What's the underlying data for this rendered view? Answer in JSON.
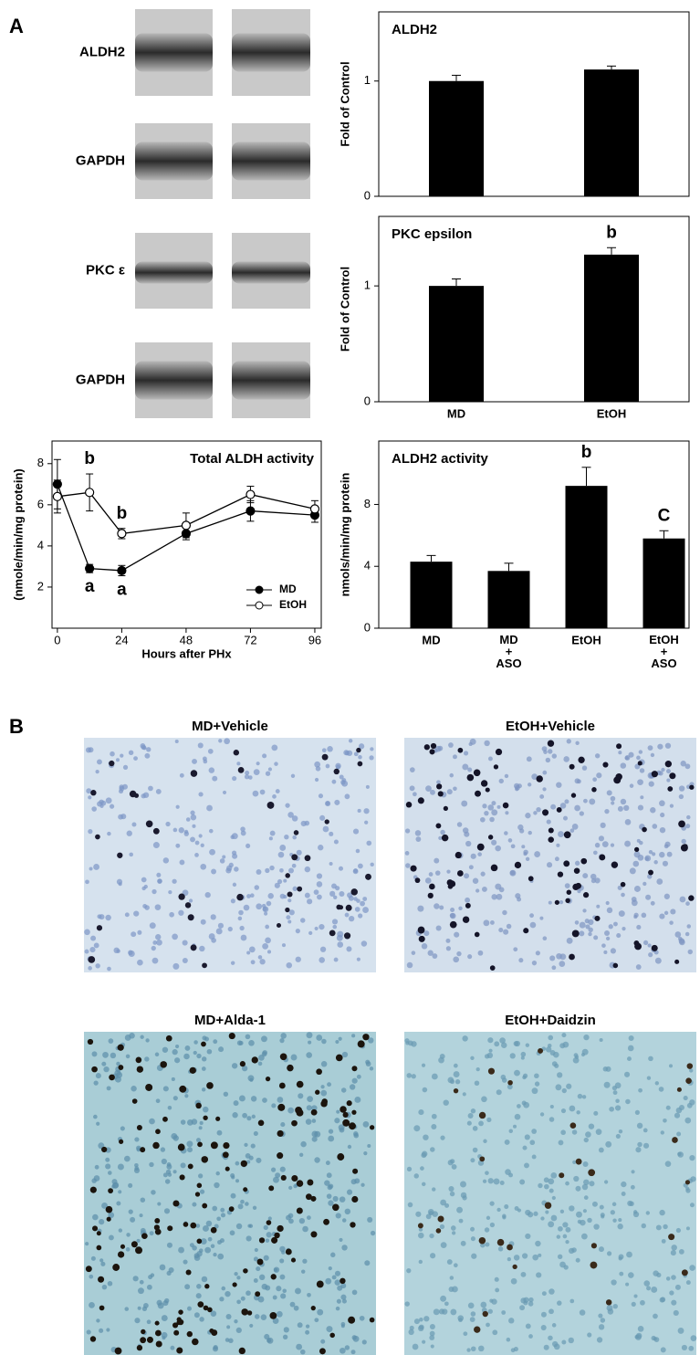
{
  "panel_labels": [
    "A",
    "B"
  ],
  "blots": [
    "ALDH2",
    "GAPDH",
    "PKC ε",
    "GAPDH"
  ],
  "micrographs": [
    "MD+Vehicle",
    "EtOH+Vehicle",
    "MD+Alda-1",
    "EtOH+Daidzin"
  ],
  "chart_data": [
    {
      "type": "bar",
      "title": "ALDH2",
      "ylabel": "Fold of Control",
      "categories": [
        null,
        null
      ],
      "values": [
        1.0,
        1.1
      ],
      "errors": [
        0.05,
        0.03
      ],
      "color": "#000000",
      "ylim": [
        0,
        1.6
      ],
      "yticks": [
        0,
        1
      ],
      "annotations": []
    },
    {
      "type": "bar",
      "title": "PKC epsilon",
      "ylabel": "Fold of Control",
      "categories": [
        "MD",
        "EtOH"
      ],
      "values": [
        1.0,
        1.27
      ],
      "errors": [
        0.06,
        0.06
      ],
      "color": "#000000",
      "ylim": [
        0,
        1.6
      ],
      "yticks": [
        0,
        1
      ],
      "annotations": [
        {
          "text": "b",
          "category": "EtOH"
        }
      ]
    },
    {
      "type": "line",
      "title": "Total ALDH activity",
      "ylabel": "(nmole/min/mg protein)",
      "xlabel": "Hours after PHx",
      "x": [
        0,
        12,
        24,
        48,
        72,
        96
      ],
      "series": [
        {
          "name": "MD",
          "color": "#000000",
          "marker_fill": "#000000",
          "values": [
            7.0,
            2.9,
            2.8,
            4.6,
            5.7,
            5.5
          ],
          "errors": [
            1.2,
            0.2,
            0.25,
            0.3,
            0.5,
            0.35
          ]
        },
        {
          "name": "EtOH",
          "color": "#000000",
          "marker_fill": "#ffffff",
          "values": [
            6.4,
            6.6,
            4.6,
            5.0,
            6.5,
            5.8
          ],
          "errors": [
            0.8,
            0.9,
            0.25,
            0.6,
            0.4,
            0.4
          ]
        }
      ],
      "xlim": [
        -2,
        98.4
      ],
      "xticks": [
        0,
        24,
        48,
        72,
        96
      ],
      "ylim": [
        0,
        9.1
      ],
      "yticks": [
        2,
        4,
        6,
        8
      ],
      "legend": "lower right",
      "annotations": [
        {
          "text": "a",
          "series": "MD",
          "x": 12
        },
        {
          "text": "a",
          "series": "MD",
          "x": 24
        },
        {
          "text": "b",
          "series": "EtOH",
          "x": 12
        },
        {
          "text": "b",
          "series": "EtOH",
          "x": 24
        }
      ]
    },
    {
      "type": "bar",
      "title": "ALDH2 activity",
      "ylabel": "nmols/min/mg protein",
      "categories": [
        "MD",
        "MD + ASO",
        "EtOH",
        "EtOH + ASO"
      ],
      "values": [
        4.3,
        3.7,
        9.2,
        5.8
      ],
      "errors": [
        0.4,
        0.5,
        1.2,
        0.5
      ],
      "color": "#000000",
      "ylim": [
        0,
        12.1
      ],
      "yticks": [
        0,
        4,
        8
      ],
      "annotations": [
        {
          "text": "b",
          "category": "EtOH"
        },
        {
          "text": "C",
          "category": "EtOH + ASO"
        }
      ]
    }
  ]
}
